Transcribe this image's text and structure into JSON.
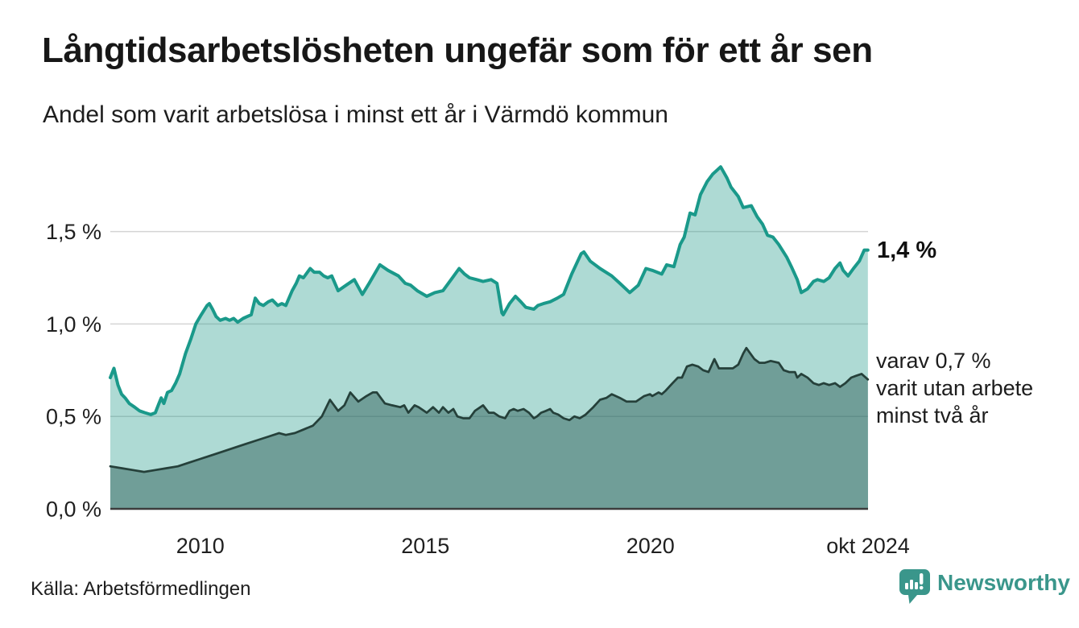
{
  "header": {
    "title": "Långtidsarbetslösheten ungefär som för ett år sen",
    "subtitle": "Andel som varit arbetslösa i minst ett år i Värmdö kommun"
  },
  "annotations": {
    "end_value_total": "1,4 %",
    "end_value_two_years_lines": [
      "varav 0,7 %",
      "varit utan arbete",
      "minst två år"
    ]
  },
  "footer": {
    "source": "Källa: Arbetsförmedlingen",
    "brand": "Newsworthy",
    "brand_color": "#3a968b"
  },
  "chart_data": {
    "type": "area",
    "title": "Långtidsarbetslösheten ungefär som för ett år sen",
    "subtitle": "Andel som varit arbetslösa i minst ett år i Värmdö kommun",
    "unit": "%",
    "grid": "horizontal-only",
    "legend_position": "none",
    "x_axis": {
      "range": [
        2008.0,
        2024.8333
      ],
      "ticks": [
        {
          "label": "2010",
          "x": 2010
        },
        {
          "label": "2015",
          "x": 2015
        },
        {
          "label": "2020",
          "x": 2020
        },
        {
          "label": "okt 2024",
          "x": 2024.8333
        }
      ]
    },
    "y_axis": {
      "range": [
        0,
        1.95
      ],
      "gridlines": [
        0.5,
        1.0,
        1.5
      ],
      "ticks": [
        {
          "label": "0,0 %",
          "value": 0
        },
        {
          "label": "0,5 %",
          "value": 0.5
        },
        {
          "label": "1,0 %",
          "value": 1.0
        },
        {
          "label": "1,5 %",
          "value": 1.5
        }
      ]
    },
    "series": [
      {
        "id": "total-one-year-plus",
        "name": "Andel som varit arbetslösa i minst ett år",
        "end_value": 1.4,
        "end_label": "1,4 %",
        "line_color": "#1a998a",
        "fill_color": "rgba(42,157,143,0.38)",
        "points": [
          [
            2008.0,
            0.71
          ],
          [
            2008.08,
            0.76
          ],
          [
            2008.17,
            0.67
          ],
          [
            2008.25,
            0.62
          ],
          [
            2008.33,
            0.6
          ],
          [
            2008.42,
            0.57
          ],
          [
            2008.54,
            0.55
          ],
          [
            2008.65,
            0.53
          ],
          [
            2008.77,
            0.52
          ],
          [
            2008.9,
            0.51
          ],
          [
            2009.0,
            0.52
          ],
          [
            2009.08,
            0.57
          ],
          [
            2009.13,
            0.6
          ],
          [
            2009.19,
            0.57
          ],
          [
            2009.27,
            0.63
          ],
          [
            2009.36,
            0.64
          ],
          [
            2009.45,
            0.68
          ],
          [
            2009.54,
            0.73
          ],
          [
            2009.67,
            0.84
          ],
          [
            2009.79,
            0.92
          ],
          [
            2009.9,
            1.0
          ],
          [
            2010.02,
            1.05
          ],
          [
            2010.15,
            1.1
          ],
          [
            2010.2,
            1.11
          ],
          [
            2010.27,
            1.08
          ],
          [
            2010.35,
            1.04
          ],
          [
            2010.44,
            1.02
          ],
          [
            2010.56,
            1.03
          ],
          [
            2010.65,
            1.02
          ],
          [
            2010.74,
            1.03
          ],
          [
            2010.83,
            1.01
          ],
          [
            2010.95,
            1.03
          ],
          [
            2011.04,
            1.04
          ],
          [
            2011.13,
            1.05
          ],
          [
            2011.22,
            1.14
          ],
          [
            2011.31,
            1.11
          ],
          [
            2011.4,
            1.1
          ],
          [
            2011.51,
            1.12
          ],
          [
            2011.6,
            1.13
          ],
          [
            2011.72,
            1.1
          ],
          [
            2011.81,
            1.11
          ],
          [
            2011.9,
            1.1
          ],
          [
            2012.04,
            1.18
          ],
          [
            2012.13,
            1.22
          ],
          [
            2012.2,
            1.26
          ],
          [
            2012.29,
            1.25
          ],
          [
            2012.44,
            1.3
          ],
          [
            2012.53,
            1.28
          ],
          [
            2012.65,
            1.28
          ],
          [
            2012.74,
            1.26
          ],
          [
            2012.83,
            1.25
          ],
          [
            2012.92,
            1.26
          ],
          [
            2013.06,
            1.18
          ],
          [
            2013.24,
            1.21
          ],
          [
            2013.42,
            1.24
          ],
          [
            2013.6,
            1.16
          ],
          [
            2013.75,
            1.22
          ],
          [
            2013.99,
            1.32
          ],
          [
            2014.17,
            1.29
          ],
          [
            2014.4,
            1.26
          ],
          [
            2014.55,
            1.22
          ],
          [
            2014.67,
            1.21
          ],
          [
            2014.82,
            1.18
          ],
          [
            2015.03,
            1.15
          ],
          [
            2015.21,
            1.17
          ],
          [
            2015.39,
            1.18
          ],
          [
            2015.57,
            1.24
          ],
          [
            2015.75,
            1.3
          ],
          [
            2015.87,
            1.27
          ],
          [
            2015.98,
            1.25
          ],
          [
            2016.14,
            1.24
          ],
          [
            2016.28,
            1.23
          ],
          [
            2016.46,
            1.24
          ],
          [
            2016.59,
            1.22
          ],
          [
            2016.7,
            1.06
          ],
          [
            2016.73,
            1.05
          ],
          [
            2016.87,
            1.11
          ],
          [
            2017.0,
            1.15
          ],
          [
            2017.12,
            1.12
          ],
          [
            2017.23,
            1.09
          ],
          [
            2017.41,
            1.08
          ],
          [
            2017.5,
            1.1
          ],
          [
            2017.62,
            1.11
          ],
          [
            2017.77,
            1.12
          ],
          [
            2017.93,
            1.14
          ],
          [
            2018.07,
            1.16
          ],
          [
            2018.25,
            1.27
          ],
          [
            2018.46,
            1.38
          ],
          [
            2018.52,
            1.39
          ],
          [
            2018.66,
            1.34
          ],
          [
            2018.88,
            1.3
          ],
          [
            2019.14,
            1.26
          ],
          [
            2019.32,
            1.22
          ],
          [
            2019.54,
            1.17
          ],
          [
            2019.73,
            1.21
          ],
          [
            2019.9,
            1.3
          ],
          [
            2020.04,
            1.29
          ],
          [
            2020.25,
            1.27
          ],
          [
            2020.36,
            1.32
          ],
          [
            2020.52,
            1.31
          ],
          [
            2020.66,
            1.43
          ],
          [
            2020.75,
            1.47
          ],
          [
            2020.88,
            1.6
          ],
          [
            2020.99,
            1.59
          ],
          [
            2021.11,
            1.7
          ],
          [
            2021.26,
            1.77
          ],
          [
            2021.38,
            1.81
          ],
          [
            2021.56,
            1.85
          ],
          [
            2021.7,
            1.79
          ],
          [
            2021.79,
            1.74
          ],
          [
            2021.95,
            1.69
          ],
          [
            2022.06,
            1.63
          ],
          [
            2022.24,
            1.64
          ],
          [
            2022.37,
            1.58
          ],
          [
            2022.49,
            1.54
          ],
          [
            2022.6,
            1.48
          ],
          [
            2022.72,
            1.47
          ],
          [
            2022.85,
            1.43
          ],
          [
            2023.03,
            1.36
          ],
          [
            2023.13,
            1.31
          ],
          [
            2023.26,
            1.24
          ],
          [
            2023.35,
            1.17
          ],
          [
            2023.49,
            1.19
          ],
          [
            2023.62,
            1.23
          ],
          [
            2023.71,
            1.24
          ],
          [
            2023.85,
            1.23
          ],
          [
            2023.97,
            1.25
          ],
          [
            2024.1,
            1.3
          ],
          [
            2024.21,
            1.33
          ],
          [
            2024.28,
            1.29
          ],
          [
            2024.39,
            1.26
          ],
          [
            2024.51,
            1.3
          ],
          [
            2024.64,
            1.34
          ],
          [
            2024.75,
            1.4
          ],
          [
            2024.83,
            1.4
          ]
        ]
      },
      {
        "id": "two-years-plus",
        "name": "varav varit utan arbete minst två år",
        "end_value": 0.7,
        "end_label": "varav 0,7 % varit utan arbete minst två år",
        "line_color": "#25403a",
        "fill_color": "rgba(43,92,88,0.48)",
        "points": [
          [
            2008.0,
            0.23
          ],
          [
            2008.25,
            0.22
          ],
          [
            2008.5,
            0.21
          ],
          [
            2008.75,
            0.2
          ],
          [
            2009.0,
            0.21
          ],
          [
            2009.25,
            0.22
          ],
          [
            2009.5,
            0.23
          ],
          [
            2009.75,
            0.25
          ],
          [
            2010.0,
            0.27
          ],
          [
            2010.25,
            0.29
          ],
          [
            2010.5,
            0.31
          ],
          [
            2010.75,
            0.33
          ],
          [
            2011.0,
            0.35
          ],
          [
            2011.25,
            0.37
          ],
          [
            2011.5,
            0.39
          ],
          [
            2011.75,
            0.41
          ],
          [
            2011.9,
            0.4
          ],
          [
            2012.1,
            0.41
          ],
          [
            2012.3,
            0.43
          ],
          [
            2012.5,
            0.45
          ],
          [
            2012.7,
            0.5
          ],
          [
            2012.8,
            0.55
          ],
          [
            2012.88,
            0.59
          ],
          [
            2013.0,
            0.55
          ],
          [
            2013.06,
            0.53
          ],
          [
            2013.2,
            0.56
          ],
          [
            2013.33,
            0.63
          ],
          [
            2013.51,
            0.58
          ],
          [
            2013.69,
            0.61
          ],
          [
            2013.83,
            0.63
          ],
          [
            2013.92,
            0.63
          ],
          [
            2014.1,
            0.57
          ],
          [
            2014.26,
            0.56
          ],
          [
            2014.44,
            0.55
          ],
          [
            2014.53,
            0.56
          ],
          [
            2014.62,
            0.52
          ],
          [
            2014.76,
            0.56
          ],
          [
            2014.85,
            0.55
          ],
          [
            2015.03,
            0.52
          ],
          [
            2015.17,
            0.55
          ],
          [
            2015.3,
            0.52
          ],
          [
            2015.39,
            0.55
          ],
          [
            2015.51,
            0.52
          ],
          [
            2015.62,
            0.54
          ],
          [
            2015.71,
            0.5
          ],
          [
            2015.84,
            0.49
          ],
          [
            2015.98,
            0.49
          ],
          [
            2016.1,
            0.53
          ],
          [
            2016.28,
            0.56
          ],
          [
            2016.41,
            0.52
          ],
          [
            2016.52,
            0.52
          ],
          [
            2016.64,
            0.5
          ],
          [
            2016.77,
            0.49
          ],
          [
            2016.87,
            0.53
          ],
          [
            2016.96,
            0.54
          ],
          [
            2017.05,
            0.53
          ],
          [
            2017.18,
            0.54
          ],
          [
            2017.3,
            0.52
          ],
          [
            2017.41,
            0.49
          ],
          [
            2017.48,
            0.5
          ],
          [
            2017.57,
            0.52
          ],
          [
            2017.68,
            0.53
          ],
          [
            2017.77,
            0.54
          ],
          [
            2017.84,
            0.52
          ],
          [
            2017.95,
            0.51
          ],
          [
            2018.07,
            0.49
          ],
          [
            2018.2,
            0.48
          ],
          [
            2018.31,
            0.5
          ],
          [
            2018.43,
            0.49
          ],
          [
            2018.56,
            0.51
          ],
          [
            2018.73,
            0.55
          ],
          [
            2018.88,
            0.59
          ],
          [
            2019.02,
            0.6
          ],
          [
            2019.14,
            0.62
          ],
          [
            2019.32,
            0.6
          ],
          [
            2019.47,
            0.58
          ],
          [
            2019.68,
            0.58
          ],
          [
            2019.86,
            0.61
          ],
          [
            2019.99,
            0.62
          ],
          [
            2020.04,
            0.61
          ],
          [
            2020.18,
            0.63
          ],
          [
            2020.25,
            0.62
          ],
          [
            2020.34,
            0.64
          ],
          [
            2020.49,
            0.68
          ],
          [
            2020.61,
            0.71
          ],
          [
            2020.7,
            0.71
          ],
          [
            2020.81,
            0.77
          ],
          [
            2020.93,
            0.78
          ],
          [
            2021.06,
            0.77
          ],
          [
            2021.17,
            0.75
          ],
          [
            2021.29,
            0.74
          ],
          [
            2021.42,
            0.81
          ],
          [
            2021.52,
            0.76
          ],
          [
            2021.65,
            0.76
          ],
          [
            2021.83,
            0.76
          ],
          [
            2021.95,
            0.78
          ],
          [
            2022.06,
            0.84
          ],
          [
            2022.13,
            0.87
          ],
          [
            2022.19,
            0.85
          ],
          [
            2022.31,
            0.81
          ],
          [
            2022.42,
            0.79
          ],
          [
            2022.54,
            0.79
          ],
          [
            2022.67,
            0.8
          ],
          [
            2022.85,
            0.79
          ],
          [
            2022.96,
            0.75
          ],
          [
            2023.08,
            0.74
          ],
          [
            2023.21,
            0.74
          ],
          [
            2023.26,
            0.71
          ],
          [
            2023.35,
            0.73
          ],
          [
            2023.49,
            0.71
          ],
          [
            2023.62,
            0.68
          ],
          [
            2023.74,
            0.67
          ],
          [
            2023.85,
            0.68
          ],
          [
            2023.97,
            0.67
          ],
          [
            2024.1,
            0.68
          ],
          [
            2024.21,
            0.66
          ],
          [
            2024.33,
            0.68
          ],
          [
            2024.46,
            0.71
          ],
          [
            2024.57,
            0.72
          ],
          [
            2024.69,
            0.73
          ],
          [
            2024.83,
            0.7
          ]
        ]
      }
    ]
  }
}
